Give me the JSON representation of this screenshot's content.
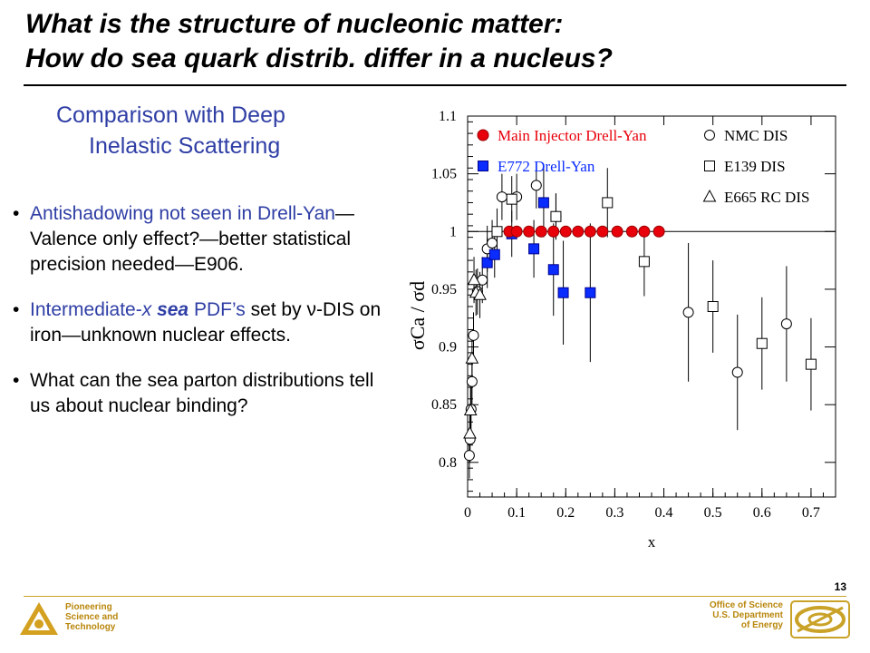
{
  "slide": {
    "title_line1": "What is the structure of nucleonic matter:",
    "title_line2": "How do sea quark distrib. differ in a nucleus?",
    "subhead_line1": "Comparison with Deep",
    "subhead_line2": "Inelastic Scattering",
    "bullets": [
      {
        "parts": [
          "Antishadowing not seen in Drell-Yan",
          "—Valence only effect?—better statistical precision needed—E906."
        ]
      },
      {
        "parts": [
          "Intermediate-",
          "x",
          " ",
          "sea",
          " PDF’s",
          " set by ",
          "ν",
          "-DIS on iron—unknown nuclear effects."
        ]
      },
      {
        "parts": [
          "What can the sea parton distributions tell us about nuclear binding?"
        ]
      }
    ],
    "bullet_char": "•",
    "page_number": "13"
  },
  "footer": {
    "left_lines": [
      "Pioneering",
      "Science and",
      "Technology"
    ],
    "right_lines": [
      "Office of Science",
      "U.S. Department",
      "of Energy"
    ]
  },
  "colors": {
    "accent_text": "#2f3ea5",
    "main_injector": "#e8000b",
    "e772": "#0a2cff",
    "footer_gold": "#b8860b"
  },
  "chart_data": {
    "type": "scatter",
    "xlabel": "x",
    "ylabel": "σCa / σd",
    "xlim": [
      0,
      0.75
    ],
    "ylim": [
      0.77,
      1.1
    ],
    "xticks": [
      "0",
      "0.1",
      "0.2",
      "0.3",
      "0.4",
      "0.5",
      "0.6",
      "0.7"
    ],
    "yticks": [
      "0.8",
      "0.85",
      "0.9",
      "0.95",
      "1",
      "1.05",
      "1.1"
    ],
    "reference_line": 1.0,
    "legend_position": "top",
    "series": [
      {
        "name": "Main Injector Drell-Yan",
        "marker": "filled-circle",
        "color": "#e8000b",
        "points": [
          [
            0.085,
            1.0,
            0
          ],
          [
            0.1,
            1.0,
            0
          ],
          [
            0.125,
            1.0,
            0
          ],
          [
            0.15,
            1.0,
            0
          ],
          [
            0.175,
            1.0,
            0
          ],
          [
            0.2,
            1.0,
            0
          ],
          [
            0.225,
            1.0,
            0
          ],
          [
            0.25,
            1.0,
            0
          ],
          [
            0.275,
            1.0,
            0
          ],
          [
            0.305,
            1.0,
            0
          ],
          [
            0.335,
            1.0,
            0
          ],
          [
            0.36,
            1.0,
            0
          ],
          [
            0.39,
            1.0,
            0
          ]
        ]
      },
      {
        "name": "E772 Drell-Yan",
        "marker": "filled-square",
        "color": "#0a2cff",
        "points": [
          [
            0.04,
            0.973,
            0.022
          ],
          [
            0.055,
            0.98,
            0.02
          ],
          [
            0.09,
            0.998,
            0.02
          ],
          [
            0.135,
            0.985,
            0.025
          ],
          [
            0.155,
            1.025,
            0.03
          ],
          [
            0.175,
            0.967,
            0.04
          ],
          [
            0.195,
            0.947,
            0.045
          ],
          [
            0.25,
            0.947,
            0.06
          ]
        ]
      },
      {
        "name": "NMC DIS",
        "marker": "open-circle",
        "color": "#000000",
        "points": [
          [
            0.0035,
            0.806,
            0.02
          ],
          [
            0.005,
            0.82,
            0.02
          ],
          [
            0.007,
            0.846,
            0.02
          ],
          [
            0.009,
            0.87,
            0.02
          ],
          [
            0.012,
            0.91,
            0.02
          ],
          [
            0.02,
            0.948,
            0.02
          ],
          [
            0.03,
            0.958,
            0.02
          ],
          [
            0.04,
            0.985,
            0.02
          ],
          [
            0.05,
            0.99,
            0.02
          ],
          [
            0.07,
            1.03,
            0.02
          ],
          [
            0.1,
            1.03,
            0.02
          ],
          [
            0.14,
            1.04,
            0.02
          ],
          [
            0.18,
            1.013,
            0.02
          ],
          [
            0.45,
            0.93,
            0.06
          ],
          [
            0.55,
            0.878,
            0.05
          ],
          [
            0.65,
            0.92,
            0.05
          ]
        ]
      },
      {
        "name": "E139 DIS",
        "marker": "open-square",
        "color": "#000000",
        "points": [
          [
            0.06,
            1.0,
            0.02
          ],
          [
            0.09,
            1.028,
            0.02
          ],
          [
            0.18,
            1.013,
            0.02
          ],
          [
            0.285,
            1.025,
            0.03
          ],
          [
            0.36,
            0.974,
            0.03
          ],
          [
            0.5,
            0.935,
            0.04
          ],
          [
            0.6,
            0.903,
            0.04
          ],
          [
            0.7,
            0.885,
            0.04
          ]
        ]
      },
      {
        "name": "E665 RC DIS",
        "marker": "open-triangle",
        "color": "#000000",
        "points": [
          [
            0.0045,
            0.825,
            0.02
          ],
          [
            0.006,
            0.845,
            0.02
          ],
          [
            0.009,
            0.89,
            0.02
          ],
          [
            0.013,
            0.958,
            0.02
          ],
          [
            0.017,
            0.947,
            0.02
          ],
          [
            0.025,
            0.945,
            0.02
          ]
        ]
      }
    ]
  }
}
